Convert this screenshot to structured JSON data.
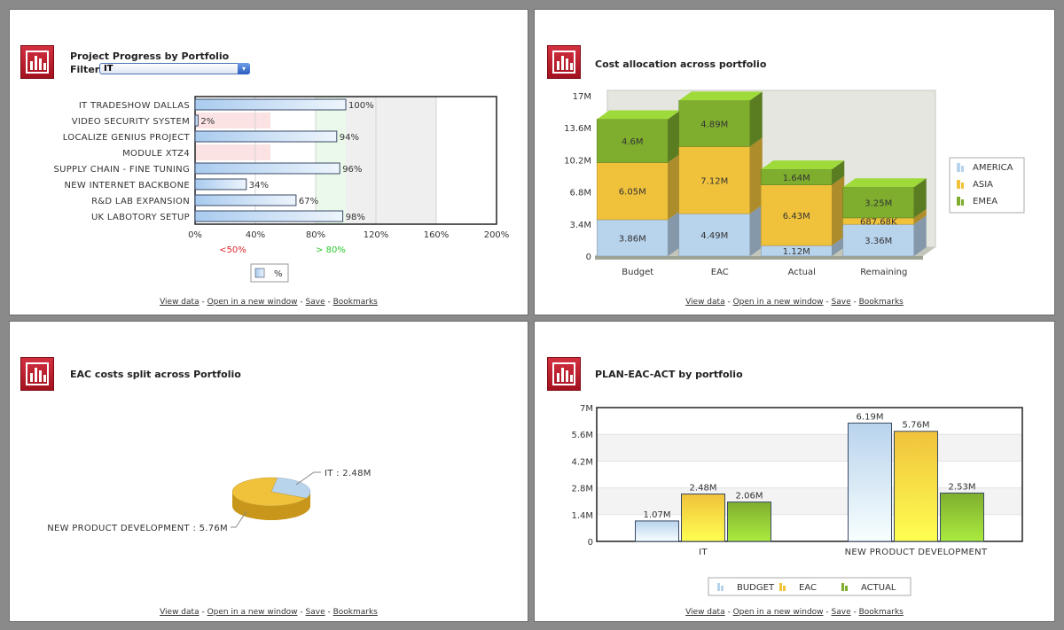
{
  "panel1": {
    "title": "Project Progress by Portfolio",
    "filter_label": "Filter",
    "filter_value": "IT",
    "chart_data": {
      "type": "bar",
      "orientation": "horizontal",
      "categories": [
        "IT TRADESHOW DALLAS",
        "VIDEO SECURITY SYSTEM",
        "LOCALIZE GENIUS PROJECT",
        "MODULE XTZ4",
        "SUPPLY CHAIN - FINE TUNING",
        "NEW INTERNET BACKBONE",
        "R&D LAB EXPANSION",
        "UK LABOTORY SETUP"
      ],
      "values": [
        100,
        2,
        94,
        0,
        96,
        34,
        67,
        98
      ],
      "value_labels": [
        "100%",
        "2%",
        "94%",
        "",
        "96%",
        "34%",
        "67%",
        "98%"
      ],
      "xlim": [
        0,
        200
      ],
      "x_ticks": [
        "0%",
        "40%",
        "80%",
        "120%",
        "160%",
        "200%"
      ],
      "trend_zones": [
        {
          "label": "<50%",
          "color": "#e0262d"
        },
        {
          "label": "> 80%",
          "color": "#2dc92d"
        }
      ],
      "legend": [
        "%"
      ]
    },
    "links": [
      "View data",
      "Open in a new window",
      "Save",
      "Bookmarks"
    ]
  },
  "panel2": {
    "title": "Cost allocation across portfolio",
    "chart_data": {
      "type": "bar",
      "stacked": true,
      "categories": [
        "Budget",
        "EAC",
        "Actual",
        "Remaining"
      ],
      "series": [
        {
          "name": "AMERICA",
          "values": [
            3.86,
            4.49,
            1.12,
            3.36
          ],
          "labels": [
            "3.86M",
            "4.49M",
            "1.12M",
            "3.36M"
          ],
          "color": "#b8d3ec"
        },
        {
          "name": "ASIA",
          "values": [
            6.05,
            7.12,
            6.43,
            0.68768
          ],
          "labels": [
            "6.05M",
            "7.12M",
            "6.43M",
            "687.68K"
          ],
          "color": "#f0c23c"
        },
        {
          "name": "EMEA",
          "values": [
            4.6,
            4.89,
            1.64,
            3.25
          ],
          "labels": [
            "4.6M",
            "4.89M",
            "1.64M",
            "3.25M"
          ],
          "color": "#7fae2f"
        }
      ],
      "y_ticks": [
        "0",
        "3.4M",
        "6.8M",
        "10.2M",
        "13.6M",
        "17M"
      ],
      "ylim": [
        0,
        17
      ],
      "legend_position": "right"
    },
    "links": [
      "View data",
      "Open in a new window",
      "Save",
      "Bookmarks"
    ]
  },
  "panel3": {
    "title": "EAC costs split across Portfolio",
    "chart_data": {
      "type": "pie",
      "slices": [
        {
          "name": "IT",
          "value": 2.48,
          "label": "IT : 2.48M",
          "color": "#b8d3ec"
        },
        {
          "name": "NEW PRODUCT DEVELOPMENT",
          "value": 5.76,
          "label": "NEW PRODUCT DEVELOPMENT : 5.76M",
          "color": "#f0c23c"
        }
      ]
    },
    "links": [
      "View data",
      "Open in a new window",
      "Save",
      "Bookmarks"
    ]
  },
  "panel4": {
    "title": "PLAN-EAC-ACT by portfolio",
    "chart_data": {
      "type": "bar",
      "categories": [
        "IT",
        "NEW PRODUCT DEVELOPMENT"
      ],
      "series": [
        {
          "name": "BUDGET",
          "values": [
            1.07,
            6.19
          ],
          "labels": [
            "1.07M",
            "6.19M"
          ],
          "color": "#b8d3ec"
        },
        {
          "name": "EAC",
          "values": [
            2.48,
            5.76
          ],
          "labels": [
            "2.48M",
            "5.76M"
          ],
          "color": "#f0c23c"
        },
        {
          "name": "ACTUAL",
          "values": [
            2.06,
            2.53
          ],
          "labels": [
            "2.06M",
            "2.53M"
          ],
          "color": "#7fae2f"
        }
      ],
      "y_ticks": [
        "0",
        "1.4M",
        "2.8M",
        "4.2M",
        "5.6M",
        "7M"
      ],
      "ylim": [
        0,
        7
      ],
      "legend_position": "bottom"
    },
    "links": [
      "View data",
      "Open in a new window",
      "Save",
      "Bookmarks"
    ]
  }
}
